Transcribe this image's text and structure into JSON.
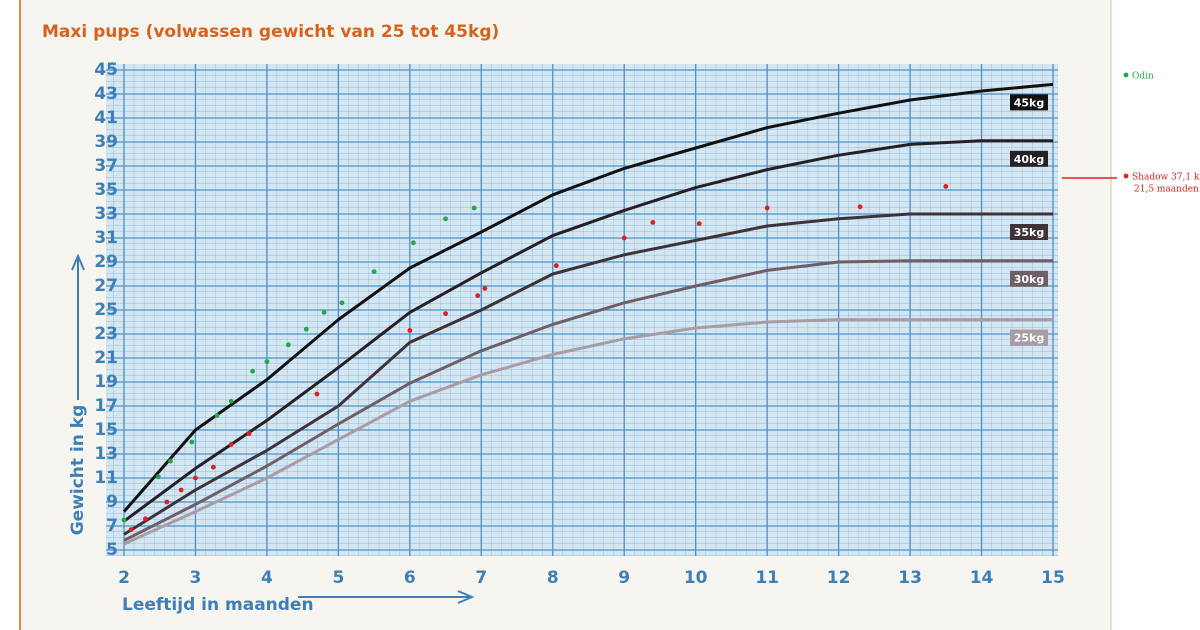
{
  "chart_data": {
    "type": "line",
    "title": "Maxi pups (volwassen gewicht van 25 tot 45kg)",
    "xlabel": "Leeftijd in maanden",
    "ylabel": "Gewicht in kg",
    "xlim": [
      2,
      15
    ],
    "ylim": [
      5,
      45
    ],
    "xticks": [
      2,
      3,
      4,
      5,
      6,
      7,
      8,
      9,
      10,
      11,
      12,
      13,
      14,
      15
    ],
    "yticks": [
      5,
      7,
      9,
      11,
      13,
      15,
      17,
      19,
      21,
      23,
      25,
      27,
      29,
      31,
      33,
      35,
      37,
      39,
      41,
      43,
      45
    ],
    "grid": true,
    "x": [
      2,
      3,
      4,
      5,
      6,
      7,
      8,
      9,
      10,
      11,
      12,
      13,
      14,
      15
    ],
    "series": [
      {
        "name": "45kg",
        "color": "#111111",
        "values": [
          8.2,
          15,
          19.2,
          24.2,
          28.5,
          31.5,
          34.6,
          36.8,
          38.5,
          40.2,
          41.4,
          42.5,
          43.25,
          43.8
        ]
      },
      {
        "name": "40kg",
        "color": "#262024",
        "values": [
          7.4,
          11.8,
          15.8,
          20.2,
          24.8,
          28.1,
          31.2,
          33.3,
          35.2,
          36.7,
          37.9,
          38.8,
          39.1,
          39.1
        ]
      },
      {
        "name": "35kg",
        "color": "#3e3338",
        "values": [
          6.3,
          10,
          13.3,
          17,
          22.3,
          25,
          28,
          29.6,
          30.8,
          32,
          32.6,
          33,
          33,
          33
        ]
      },
      {
        "name": "30kg",
        "color": "#6e5f66",
        "values": [
          5.8,
          8.8,
          12,
          15.5,
          18.9,
          21.6,
          23.8,
          25.6,
          27,
          28.3,
          29,
          29.1,
          29.1,
          29.1
        ]
      },
      {
        "name": "25kg",
        "color": "#a99ca2",
        "values": [
          5.5,
          8.2,
          11,
          14.2,
          17.4,
          19.6,
          21.3,
          22.6,
          23.5,
          24,
          24.2,
          24.2,
          24.2,
          24.2
        ]
      }
    ],
    "markers": [
      {
        "name": "Odin",
        "color": "#1fa84a",
        "x": [
          2,
          2.48,
          2.65,
          2.95,
          3.3,
          3.5,
          3.8,
          4.0,
          4.3,
          4.55,
          4.8,
          5.05,
          5.5,
          6.05,
          6.5,
          6.9
        ],
        "y": [
          7.5,
          11.1,
          12.4,
          14,
          16.2,
          17.4,
          19.9,
          20.7,
          22.1,
          23.4,
          24.8,
          25.6,
          28.2,
          30.6,
          32.6,
          33.5
        ]
      },
      {
        "name": "Shadow 37,1 k",
        "color": "#e02020",
        "x": [
          2.1,
          2.3,
          2.6,
          2.8,
          3.0,
          3.25,
          3.5,
          3.75,
          4.7,
          6.0,
          6.5,
          6.95,
          7.05,
          8.05,
          9.0,
          9.4,
          10.05,
          11.0,
          12.3,
          13.5
        ],
        "y": [
          6.7,
          7.6,
          9,
          10,
          11,
          11.9,
          13.8,
          14.7,
          18,
          23.3,
          24.7,
          26.2,
          26.8,
          28.7,
          31,
          32.3,
          32.2,
          33.5,
          33.6,
          35.3
        ]
      }
    ],
    "annotations": [
      "21,5 maanden"
    ]
  }
}
